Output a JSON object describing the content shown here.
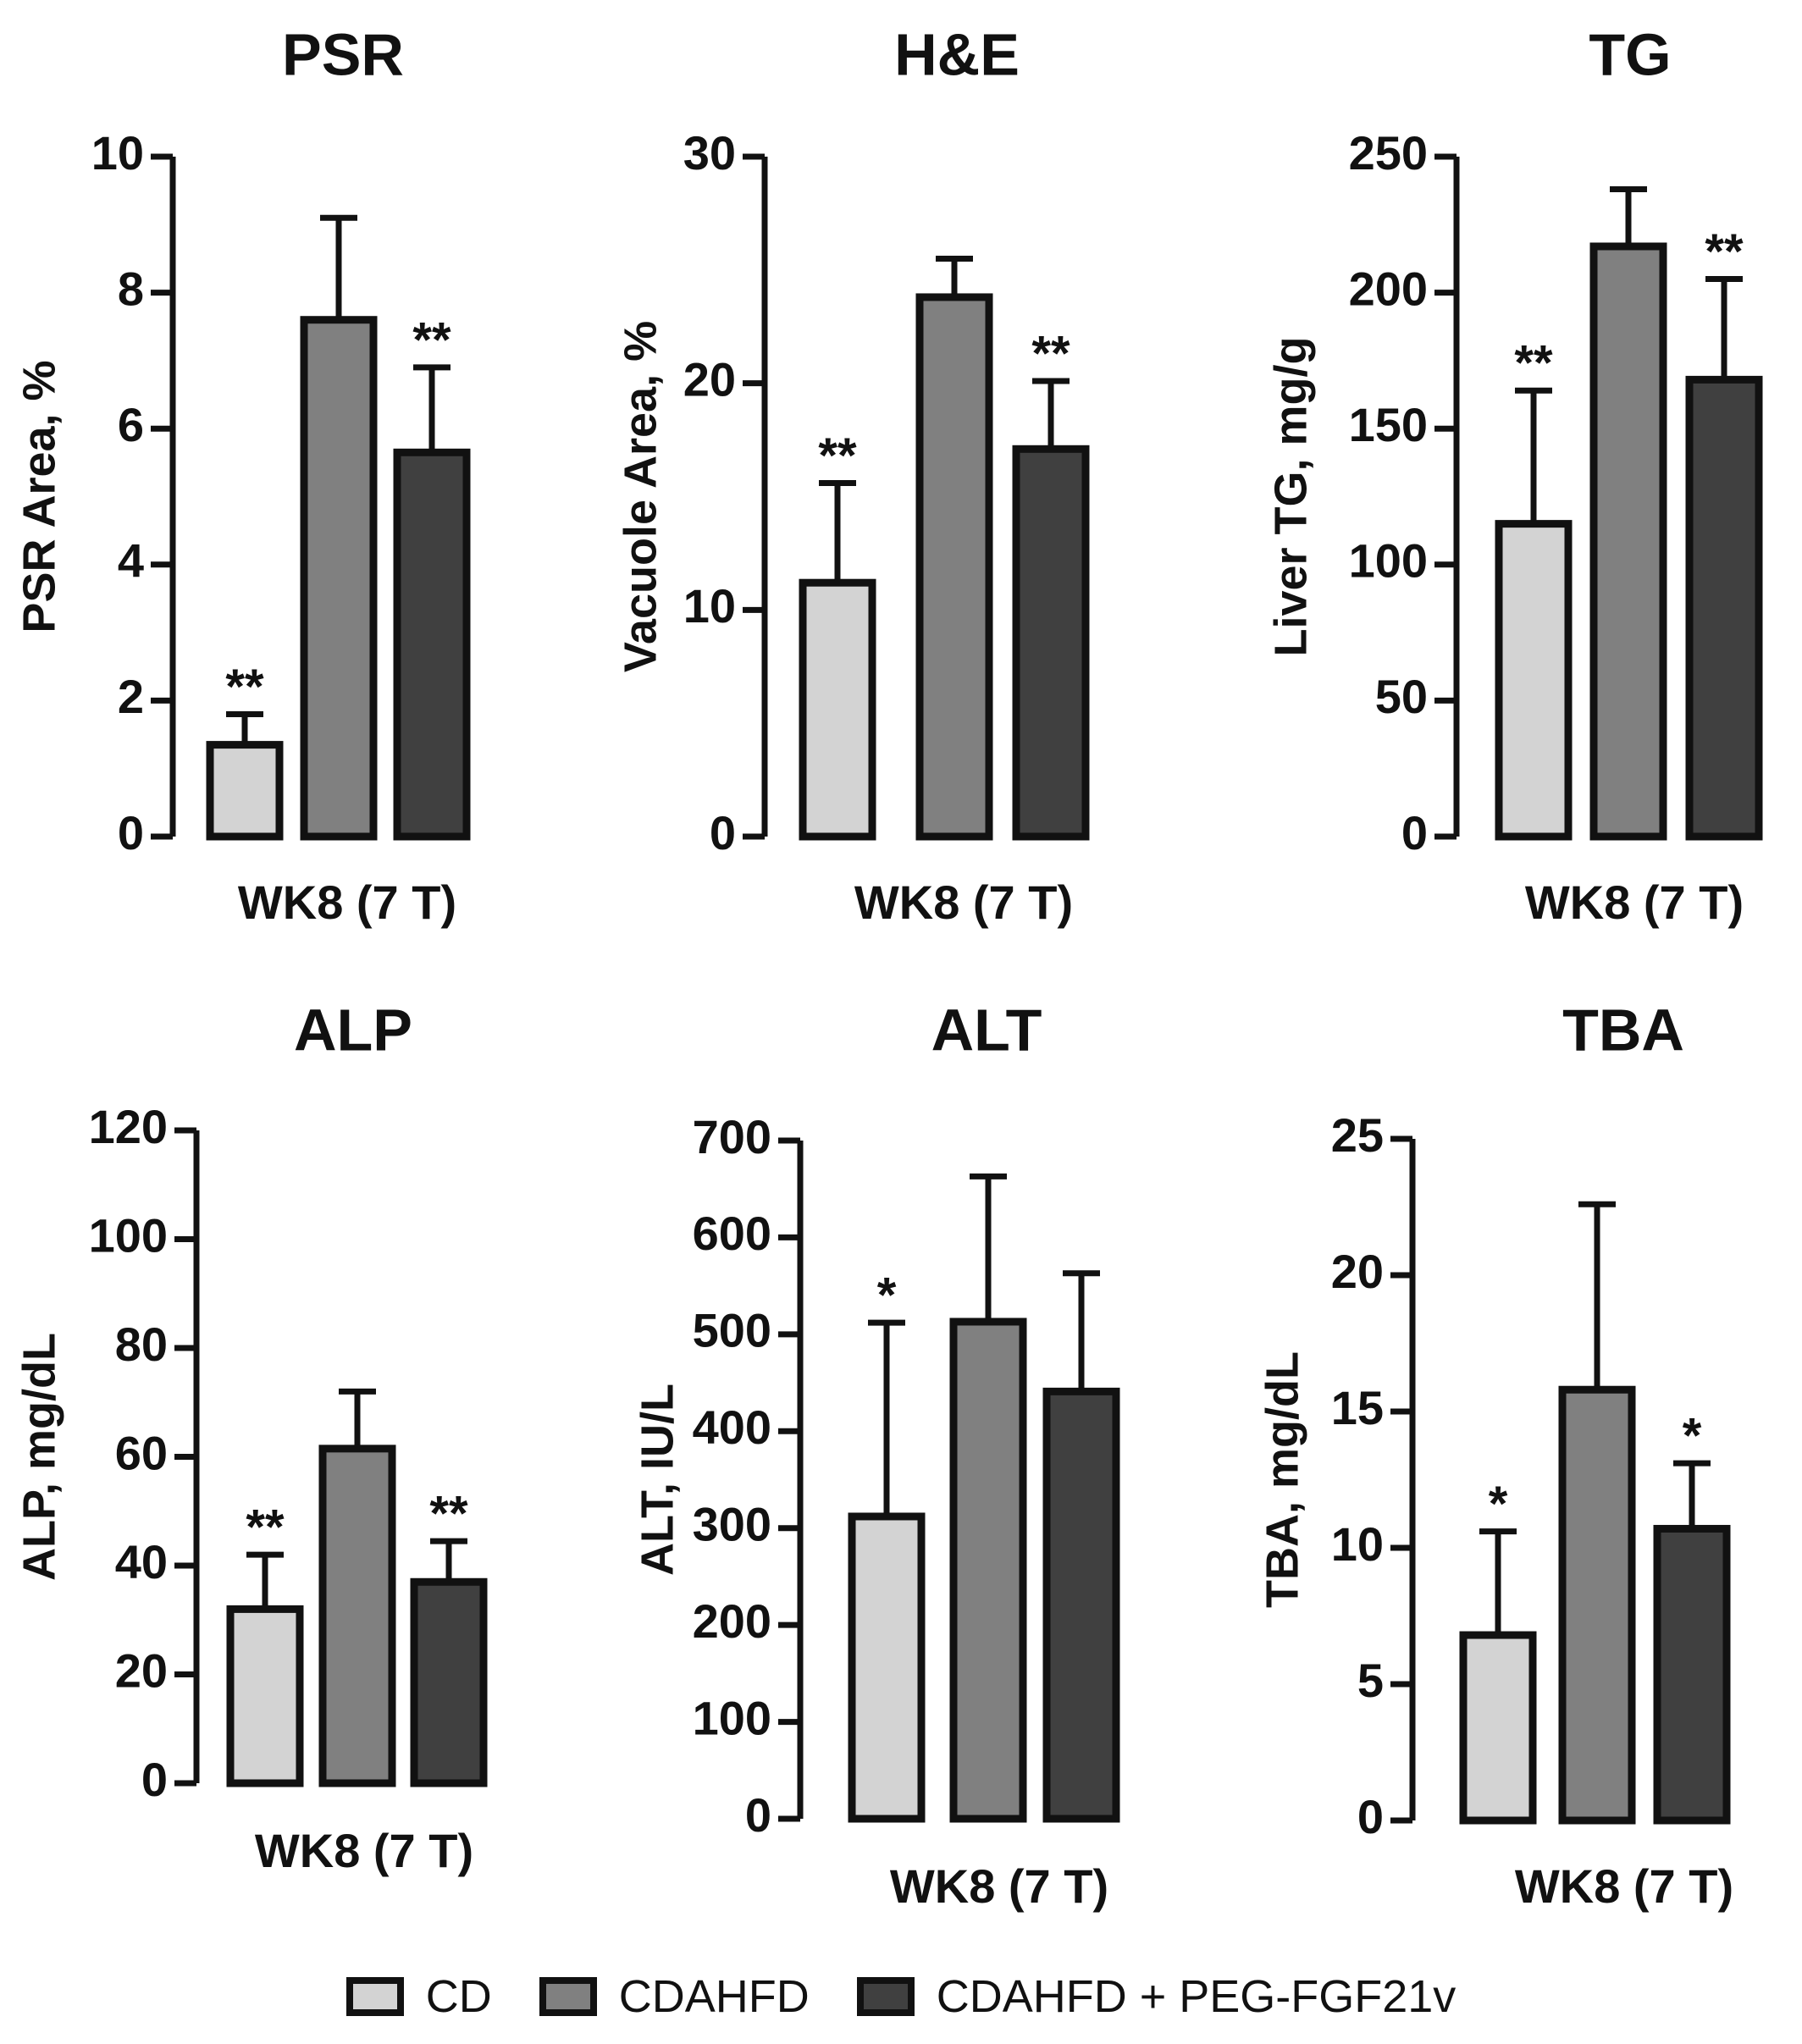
{
  "chart_data": [
    {
      "type": "bar",
      "title": "PSR",
      "ylabel": "PSR Area, %",
      "xlabel": "WK8 (7 T)",
      "ylim": [
        0,
        10
      ],
      "yticks": [
        "0",
        "2",
        "4",
        "6",
        "8",
        "10"
      ],
      "series": [
        {
          "name": "CD",
          "value": 1.35,
          "error": 0.45,
          "sig": "**"
        },
        {
          "name": "CDAHFD",
          "value": 7.6,
          "error": 1.5,
          "sig": ""
        },
        {
          "name": "CDAHFD + PEG-FGF21v",
          "value": 5.65,
          "error": 1.25,
          "sig": "**"
        }
      ]
    },
    {
      "type": "bar",
      "title": "H&E",
      "ylabel": "Vacuole Area, %",
      "xlabel": "WK8 (7 T)",
      "ylim": [
        0,
        30
      ],
      "yticks": [
        "0",
        "10",
        "20",
        "30"
      ],
      "series": [
        {
          "name": "CD",
          "value": 11.2,
          "error": 4.4,
          "sig": "**"
        },
        {
          "name": "CDAHFD",
          "value": 23.8,
          "error": 1.7,
          "sig": ""
        },
        {
          "name": "CDAHFD + PEG-FGF21v",
          "value": 17.1,
          "error": 3.0,
          "sig": "**"
        }
      ]
    },
    {
      "type": "bar",
      "title": "TG",
      "ylabel": "Liver TG, mg/g",
      "xlabel": "WK8 (7 T)",
      "ylim": [
        0,
        250
      ],
      "yticks": [
        "0",
        "50",
        "100",
        "150",
        "200",
        "250"
      ],
      "series": [
        {
          "name": "CD",
          "value": 115,
          "error": 49,
          "sig": "**"
        },
        {
          "name": "CDAHFD",
          "value": 217,
          "error": 21,
          "sig": ""
        },
        {
          "name": "CDAHFD + PEG-FGF21v",
          "value": 168,
          "error": 37,
          "sig": "**"
        }
      ]
    },
    {
      "type": "bar",
      "title": "ALP",
      "ylabel": "ALP, mg/dL",
      "xlabel": "WK8 (7 T)",
      "ylim": [
        0,
        120
      ],
      "yticks": [
        "0",
        "20",
        "40",
        "60",
        "80",
        "100",
        "120"
      ],
      "series": [
        {
          "name": "CD",
          "value": 32,
          "error": 10,
          "sig": "**"
        },
        {
          "name": "CDAHFD",
          "value": 61.5,
          "error": 10.5,
          "sig": ""
        },
        {
          "name": "CDAHFD + PEG-FGF21v",
          "value": 37,
          "error": 7.5,
          "sig": "**"
        }
      ]
    },
    {
      "type": "bar",
      "title": "ALT",
      "ylabel": "ALT, IU/L",
      "xlabel": "WK8 (7 T)",
      "ylim": [
        0,
        700
      ],
      "yticks": [
        "0",
        "100",
        "200",
        "300",
        "400",
        "500",
        "600",
        "700"
      ],
      "series": [
        {
          "name": "CD",
          "value": 312,
          "error": 200,
          "sig": "*"
        },
        {
          "name": "CDAHFD",
          "value": 513,
          "error": 150,
          "sig": ""
        },
        {
          "name": "CDAHFD + PEG-FGF21v",
          "value": 441,
          "error": 122,
          "sig": ""
        }
      ]
    },
    {
      "type": "bar",
      "title": "TBA",
      "ylabel": "TBA, mg/dL",
      "xlabel": "WK8 (7 T)",
      "ylim": [
        0,
        25
      ],
      "yticks": [
        "0",
        "5",
        "10",
        "15",
        "20",
        "25"
      ],
      "series": [
        {
          "name": "CD",
          "value": 6.8,
          "error": 3.8,
          "sig": "*"
        },
        {
          "name": "CDAHFD",
          "value": 15.8,
          "error": 6.8,
          "sig": ""
        },
        {
          "name": "CDAHFD + PEG-FGF21v",
          "value": 10.7,
          "error": 2.4,
          "sig": "*"
        }
      ]
    }
  ],
  "legend": {
    "items": [
      {
        "label": "CD",
        "color": "#d3d3d3"
      },
      {
        "label": "CDAHFD",
        "color": "#808080"
      },
      {
        "label": "CDAHFD + PEG-FGF21v",
        "color": "#404040"
      }
    ]
  }
}
